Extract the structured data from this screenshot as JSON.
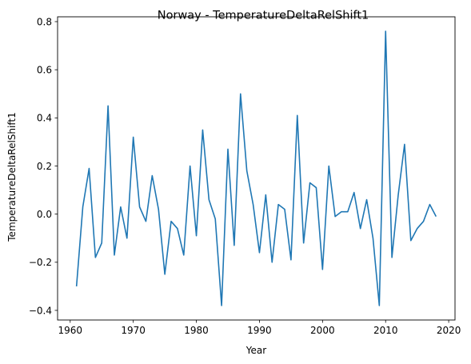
{
  "chart_data": {
    "type": "line",
    "title": "Norway - TemperatureDeltaRelShift1",
    "xlabel": "Year",
    "ylabel": "TemperatureDeltaRelShift1",
    "xlim": [
      1958,
      2021
    ],
    "ylim": [
      -0.44,
      0.82
    ],
    "xticks": [
      1960,
      1970,
      1980,
      1990,
      2000,
      2010,
      2020
    ],
    "yticks": [
      -0.4,
      -0.2,
      0.0,
      0.2,
      0.4,
      0.6,
      0.8
    ],
    "xtick_labels": [
      "1960",
      "1970",
      "1980",
      "1990",
      "2000",
      "2010",
      "2020"
    ],
    "ytick_labels": [
      "−0.4",
      "−0.2",
      "0.0",
      "0.2",
      "0.4",
      "0.6",
      "0.8"
    ],
    "grid": false,
    "line_color": "#1f77b4",
    "series": [
      {
        "x": [
          1961,
          1962,
          1963,
          1964,
          1965,
          1966,
          1967,
          1968,
          1969,
          1970,
          1971,
          1972,
          1973,
          1974,
          1975,
          1976,
          1977,
          1978,
          1979,
          1980,
          1981,
          1982,
          1983,
          1984,
          1985,
          1986,
          1987,
          1988,
          1989,
          1990,
          1991,
          1992,
          1993,
          1994,
          1995,
          1996,
          1997,
          1998,
          1999,
          2000,
          2001,
          2002,
          2003,
          2004,
          2005,
          2006,
          2007,
          2008,
          2009,
          2010,
          2011,
          2012,
          2013,
          2014,
          2015,
          2016,
          2017,
          2018
        ],
        "values": [
          -0.3,
          0.03,
          0.19,
          -0.18,
          -0.12,
          0.45,
          -0.17,
          0.03,
          -0.1,
          0.32,
          0.03,
          -0.03,
          0.16,
          0.02,
          -0.25,
          -0.03,
          -0.06,
          -0.17,
          0.2,
          -0.09,
          0.35,
          0.06,
          -0.02,
          -0.38,
          0.27,
          -0.13,
          0.5,
          0.18,
          0.04,
          -0.16,
          0.08,
          -0.2,
          0.04,
          0.02,
          -0.19,
          0.41,
          -0.12,
          0.13,
          0.11,
          -0.23,
          0.2,
          -0.01,
          0.01,
          0.01,
          0.09,
          -0.06,
          0.06,
          -0.1,
          -0.38,
          0.76,
          -0.18,
          0.08,
          0.29,
          -0.11,
          -0.06,
          -0.03,
          0.04,
          -0.01
        ]
      }
    ]
  }
}
